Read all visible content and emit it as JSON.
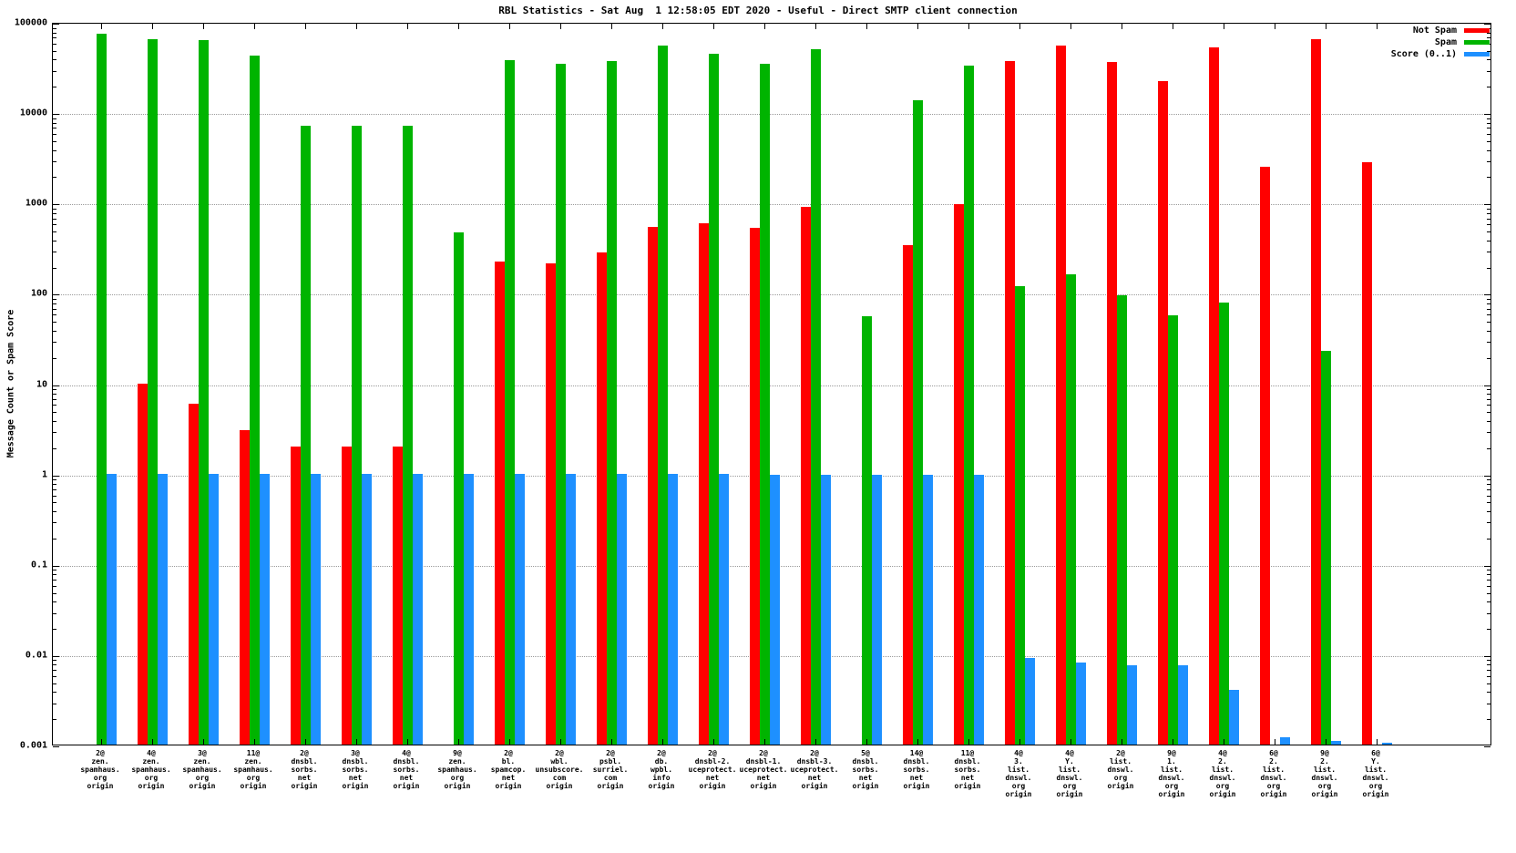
{
  "title": "RBL Statistics - Sat Aug  1 12:58:05 EDT 2020 - Useful - Direct SMTP client connection",
  "ylabel": "Message Count or Spam Score",
  "chart_data": {
    "type": "bar",
    "log_scale": true,
    "ylim": [
      0.001,
      100000
    ],
    "grid": "horizontal-dotted",
    "legend_position": "top-right",
    "yticks": [
      {
        "v": 100000,
        "label": "100000"
      },
      {
        "v": 10000,
        "label": "10000"
      },
      {
        "v": 1000,
        "label": "1000"
      },
      {
        "v": 100,
        "label": "100"
      },
      {
        "v": 10,
        "label": "10"
      },
      {
        "v": 1,
        "label": "1"
      },
      {
        "v": 0.1,
        "label": "0.1"
      },
      {
        "v": 0.01,
        "label": "0.01"
      },
      {
        "v": 0.001,
        "label": "0.001"
      }
    ],
    "categories": [
      [
        "2@",
        "zen.",
        "spamhaus.",
        "org",
        "origin"
      ],
      [
        "4@",
        "zen.",
        "spamhaus.",
        "org",
        "origin"
      ],
      [
        "3@",
        "zen.",
        "spamhaus.",
        "org",
        "origin"
      ],
      [
        "11@",
        "zen.",
        "spamhaus.",
        "org",
        "origin"
      ],
      [
        "2@",
        "dnsbl.",
        "sorbs.",
        "net",
        "origin"
      ],
      [
        "3@",
        "dnsbl.",
        "sorbs.",
        "net",
        "origin"
      ],
      [
        "4@",
        "dnsbl.",
        "sorbs.",
        "net",
        "origin"
      ],
      [
        "9@",
        "zen.",
        "spamhaus.",
        "org",
        "origin"
      ],
      [
        "2@",
        "bl.",
        "spamcop.",
        "net",
        "origin"
      ],
      [
        "2@",
        "wbl.",
        "unsubscore.",
        "com",
        "origin"
      ],
      [
        "2@",
        "psbl.",
        "surriel.",
        "com",
        "origin"
      ],
      [
        "2@",
        "db.",
        "wpbl.",
        "info",
        "origin"
      ],
      [
        "2@",
        "dnsbl-2.",
        "uceprotect.",
        "net",
        "origin"
      ],
      [
        "2@",
        "dnsbl-1.",
        "uceprotect.",
        "net",
        "origin"
      ],
      [
        "2@",
        "dnsbl-3.",
        "uceprotect.",
        "net",
        "origin"
      ],
      [
        "5@",
        "dnsbl.",
        "sorbs.",
        "net",
        "origin"
      ],
      [
        "14@",
        "dnsbl.",
        "sorbs.",
        "net",
        "origin"
      ],
      [
        "11@",
        "dnsbl.",
        "sorbs.",
        "net",
        "origin"
      ],
      [
        "4@",
        "3.",
        "list.",
        "dnswl.",
        "org",
        "origin"
      ],
      [
        "4@",
        "Y.",
        "list.",
        "dnswl.",
        "org",
        "origin"
      ],
      [
        "2@",
        "list.",
        "dnswl.",
        "org",
        "origin"
      ],
      [
        "9@",
        "1.",
        "list.",
        "dnswl.",
        "org",
        "origin"
      ],
      [
        "4@",
        "2.",
        "list.",
        "dnswl.",
        "org",
        "origin"
      ],
      [
        "6@",
        "2.",
        "list.",
        "dnswl.",
        "org",
        "origin"
      ],
      [
        "9@",
        "2.",
        "list.",
        "dnswl.",
        "org",
        "origin"
      ],
      [
        "6@",
        "Y.",
        "list.",
        "dnswl.",
        "org",
        "origin"
      ]
    ],
    "series": [
      {
        "name": "Not Spam",
        "color": "#ff0000",
        "values": [
          null,
          10,
          6,
          3,
          2,
          2,
          2,
          null,
          220,
          210,
          280,
          540,
          590,
          520,
          900,
          null,
          340,
          950,
          37000,
          55000,
          36000,
          22000,
          52000,
          2500,
          65000,
          2800
        ]
      },
      {
        "name": "Spam",
        "color": "#00b400",
        "values": [
          74000,
          65000,
          63000,
          42000,
          7000,
          7000,
          7000,
          470,
          38000,
          34000,
          37000,
          55000,
          44000,
          34000,
          50000,
          55,
          13500,
          33000,
          118,
          160,
          95,
          57,
          78,
          null,
          23,
          null
        ]
      },
      {
        "name": "Score (0..1)",
        "color": "#1e90ff",
        "values": [
          1,
          1,
          1,
          1,
          1,
          1,
          1,
          1,
          1,
          1,
          1,
          1,
          1,
          0.97,
          0.97,
          0.97,
          0.97,
          0.97,
          0.009,
          0.008,
          0.0075,
          0.0075,
          0.004,
          0.0012,
          0.0011,
          0.00105
        ]
      }
    ]
  }
}
